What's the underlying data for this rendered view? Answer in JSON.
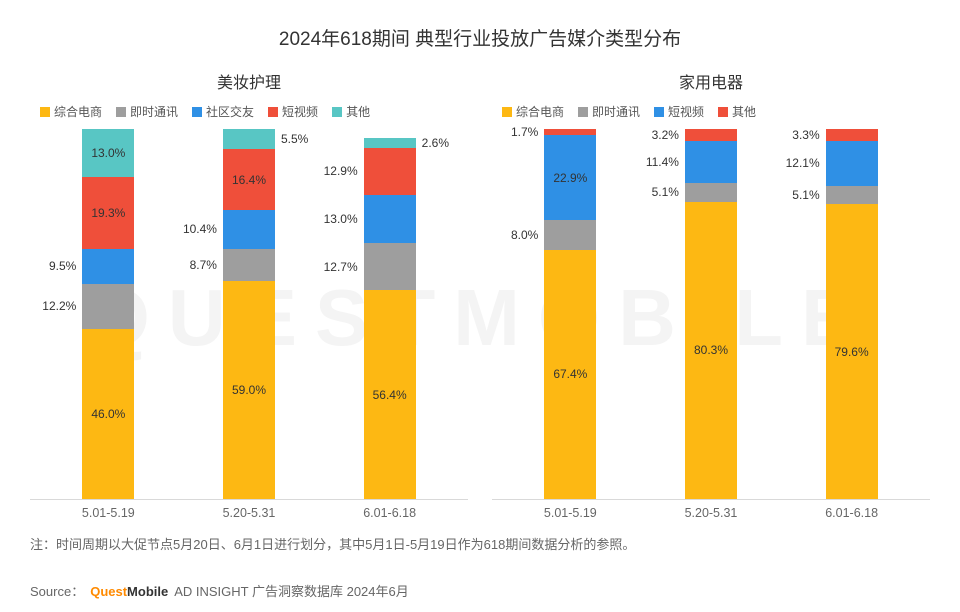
{
  "mainTitle": "2024年618期间 典型行业投放广告媒介类型分布",
  "watermark": "QUESTMOBILE",
  "note": "注：时间周期以大促节点5月20日、6月1日进行划分，其中5月1日-5月19日作为618期间数据分析的参照。",
  "sourcePrefix": "Source：",
  "sourceBrandQ": "Quest",
  "sourceBrandM": "Mobile",
  "sourceTail": " AD INSIGHT 广告洞察数据库 2024年6月",
  "layout": {
    "plotHeightPx": 370,
    "barWidthPx": 52,
    "totalPercent": 100,
    "background": "#ffffff",
    "axisColor": "#d9d9d9",
    "textColor": "#333333",
    "noteColor": "#666666",
    "labelFontSize": 12,
    "titleFontSize": 19,
    "subtitleFontSize": 16
  },
  "palette": {
    "ecommerce": "#fdb813",
    "im": "#9e9e9e",
    "social": "#2f90e5",
    "shortvideo_left": "#ef4f3a",
    "other_left": "#58c6c4",
    "shortvideo_right": "#2f90e5",
    "other_right": "#ef4f3a"
  },
  "charts": [
    {
      "subtitle": "美妆护理",
      "legend": [
        {
          "label": "综合电商",
          "colorKey": "ecommerce"
        },
        {
          "label": "即时通讯",
          "colorKey": "im"
        },
        {
          "label": "社区交友",
          "colorKey": "social"
        },
        {
          "label": "短视频",
          "colorKey": "shortvideo_left"
        },
        {
          "label": "其他",
          "colorKey": "other_left"
        }
      ],
      "categories": [
        "5.01-5.19",
        "5.20-5.31",
        "6.01-6.18"
      ],
      "stacks": [
        [
          {
            "v": 46.0,
            "colorKey": "ecommerce",
            "label": "46.0%",
            "pos": "inside"
          },
          {
            "v": 12.2,
            "colorKey": "im",
            "label": "12.2%",
            "pos": "outside-left"
          },
          {
            "v": 9.5,
            "colorKey": "social",
            "label": "9.5%",
            "pos": "outside-left"
          },
          {
            "v": 19.3,
            "colorKey": "shortvideo_left",
            "label": "19.3%",
            "pos": "inside"
          },
          {
            "v": 13.0,
            "colorKey": "other_left",
            "label": "13.0%",
            "pos": "inside"
          }
        ],
        [
          {
            "v": 59.0,
            "colorKey": "ecommerce",
            "label": "59.0%",
            "pos": "inside"
          },
          {
            "v": 8.7,
            "colorKey": "im",
            "label": "8.7%",
            "pos": "outside-left"
          },
          {
            "v": 10.4,
            "colorKey": "social",
            "label": "10.4%",
            "pos": "outside-left"
          },
          {
            "v": 16.4,
            "colorKey": "shortvideo_left",
            "label": "16.4%",
            "pos": "inside"
          },
          {
            "v": 5.5,
            "colorKey": "other_left",
            "label": "5.5%",
            "pos": "outside-right"
          }
        ],
        [
          {
            "v": 56.4,
            "colorKey": "ecommerce",
            "label": "56.4%",
            "pos": "inside"
          },
          {
            "v": 12.7,
            "colorKey": "im",
            "label": "12.7%",
            "pos": "outside-left"
          },
          {
            "v": 13.0,
            "colorKey": "social",
            "label": "13.0%",
            "pos": "outside-left"
          },
          {
            "v": 12.9,
            "colorKey": "shortvideo_left",
            "label": "12.9%",
            "pos": "outside-left"
          },
          {
            "v": 2.6,
            "colorKey": "other_left",
            "label": "2.6%",
            "pos": "outside-right"
          }
        ]
      ]
    },
    {
      "subtitle": "家用电器",
      "legend": [
        {
          "label": "综合电商",
          "colorKey": "ecommerce"
        },
        {
          "label": "即时通讯",
          "colorKey": "im"
        },
        {
          "label": "短视频",
          "colorKey": "shortvideo_right"
        },
        {
          "label": "其他",
          "colorKey": "other_right"
        }
      ],
      "categories": [
        "5.01-5.19",
        "5.20-5.31",
        "6.01-6.18"
      ],
      "stacks": [
        [
          {
            "v": 67.4,
            "colorKey": "ecommerce",
            "label": "67.4%",
            "pos": "inside"
          },
          {
            "v": 8.0,
            "colorKey": "im",
            "label": "8.0%",
            "pos": "outside-left"
          },
          {
            "v": 22.9,
            "colorKey": "shortvideo_right",
            "label": "22.9%",
            "pos": "inside"
          },
          {
            "v": 1.7,
            "colorKey": "other_right",
            "label": "1.7%",
            "pos": "outside-left"
          }
        ],
        [
          {
            "v": 80.3,
            "colorKey": "ecommerce",
            "label": "80.3%",
            "pos": "inside"
          },
          {
            "v": 5.1,
            "colorKey": "im",
            "label": "5.1%",
            "pos": "outside-left"
          },
          {
            "v": 11.4,
            "colorKey": "shortvideo_right",
            "label": "11.4%",
            "pos": "outside-left"
          },
          {
            "v": 3.2,
            "colorKey": "other_right",
            "label": "3.2%",
            "pos": "outside-left"
          }
        ],
        [
          {
            "v": 79.6,
            "colorKey": "ecommerce",
            "label": "79.6%",
            "pos": "inside"
          },
          {
            "v": 5.1,
            "colorKey": "im",
            "label": "5.1%",
            "pos": "outside-left"
          },
          {
            "v": 12.1,
            "colorKey": "shortvideo_right",
            "label": "12.1%",
            "pos": "outside-left"
          },
          {
            "v": 3.3,
            "colorKey": "other_right",
            "label": "3.3%",
            "pos": "outside-left"
          }
        ]
      ]
    }
  ]
}
